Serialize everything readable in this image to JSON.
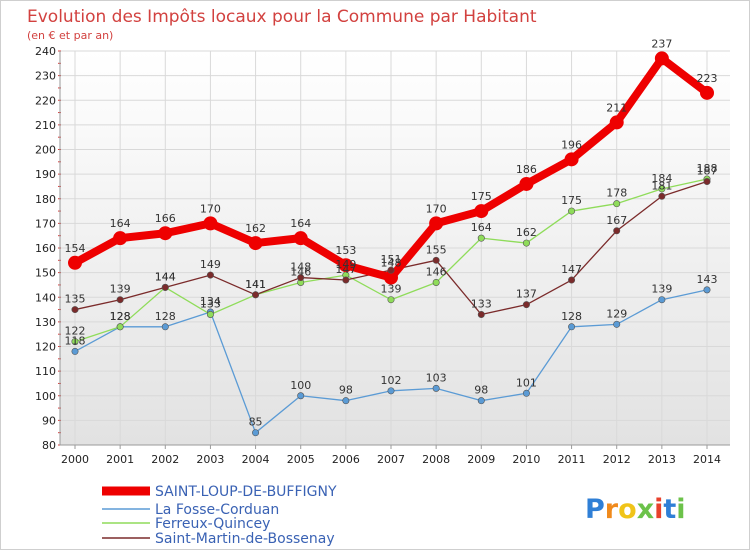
{
  "chart_data": {
    "type": "line",
    "title": "Evolution des Impôts locaux pour la Commune par Habitant",
    "subtitle": "(en € et par an)",
    "xlabel": "",
    "ylabel": "",
    "x": [
      "2000",
      "2001",
      "2002",
      "2003",
      "2004",
      "2005",
      "2006",
      "2007",
      "2008",
      "2009",
      "2010",
      "2011",
      "2012",
      "2013",
      "2014"
    ],
    "ylim": [
      80,
      240
    ],
    "yticks": [
      "80",
      "90",
      "100",
      "110",
      "120",
      "130",
      "140",
      "150",
      "160",
      "170",
      "180",
      "190",
      "200",
      "210",
      "220",
      "230",
      "240"
    ],
    "grid": true,
    "legend_position": "bottom-left",
    "series": [
      {
        "name": "SAINT-LOUP-DE-BUFFIGNY",
        "color": "#ee0000",
        "values": [
          154,
          164,
          166,
          170,
          162,
          164,
          153,
          148,
          170,
          175,
          186,
          196,
          211,
          237,
          223
        ],
        "labels": [
          "154",
          "164",
          "166",
          "170",
          "162",
          "164",
          "153",
          "148",
          "170",
          "175",
          "186",
          "196",
          "211",
          "237",
          "223"
        ]
      },
      {
        "name": "La Fosse-Corduan",
        "color": "#5b9bd5",
        "values": [
          118,
          128,
          128,
          134,
          85,
          100,
          98,
          102,
          103,
          98,
          101,
          128,
          129,
          139,
          143
        ],
        "labels": [
          "118",
          "128",
          "128",
          "134",
          "85",
          "100",
          "98",
          "102",
          "103",
          "98",
          "101",
          "128",
          "129",
          "139",
          "143"
        ]
      },
      {
        "name": "Ferreux-Quincey",
        "color": "#8fdc5a",
        "values": [
          122,
          128,
          144,
          133,
          141,
          146,
          149,
          139,
          146,
          164,
          162,
          175,
          178,
          184,
          188
        ],
        "labels": [
          "122",
          "128",
          "144",
          "133",
          "141",
          "146",
          "149",
          "139",
          "146",
          "164",
          "162",
          "175",
          "178",
          "184",
          "188"
        ]
      },
      {
        "name": "Saint-Martin-de-Bossenay",
        "color": "#7b2b2b",
        "values": [
          135,
          139,
          144,
          149,
          141,
          148,
          147,
          151,
          155,
          133,
          137,
          147,
          167,
          181,
          187
        ],
        "labels": [
          "135",
          "139",
          "144",
          "149",
          "141",
          "148",
          "147",
          "151",
          "155",
          "133",
          "137",
          "147",
          "167",
          "181",
          "187"
        ]
      }
    ]
  },
  "logo": {
    "letters": [
      "P",
      "r",
      "o",
      "x",
      "i",
      "t",
      "i"
    ],
    "colors": [
      "#2f7fd6",
      "#f08a1c",
      "#f0c419",
      "#6cc24a",
      "#e8412c",
      "#2f7fd6",
      "#6cc24a"
    ]
  }
}
